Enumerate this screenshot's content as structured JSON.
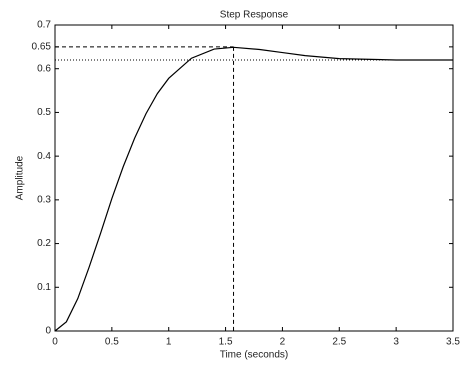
{
  "chart_data": {
    "type": "line",
    "title": "Step Response",
    "x_label": "Time (seconds)",
    "y_label": "Amplitude",
    "x": [
      0,
      0.1,
      0.2,
      0.3,
      0.4,
      0.5,
      0.6,
      0.7,
      0.8,
      0.9,
      1.0,
      1.2,
      1.4,
      1.57,
      1.8,
      2.0,
      2.2,
      2.5,
      3.0,
      3.5
    ],
    "series": [
      {
        "color": "#000000",
        "values": [
          0,
          0.021,
          0.074,
          0.146,
          0.223,
          0.303,
          0.376,
          0.441,
          0.497,
          0.543,
          0.578,
          0.624,
          0.645,
          0.649,
          0.644,
          0.637,
          0.63,
          0.623,
          0.62,
          0.62
        ]
      }
    ],
    "peak": {
      "x": 1.57,
      "y": 0.65
    },
    "steady_state": 0.62,
    "xlim": [
      0,
      3.5
    ],
    "ylim": [
      0,
      0.7
    ],
    "xticks": [
      0,
      0.5,
      1,
      1.5,
      2,
      2.5,
      3,
      3.5
    ],
    "yticks": [
      0,
      0.1,
      0.2,
      0.3,
      0.4,
      0.5,
      0.6,
      0.65,
      0.7
    ],
    "grid": false
  }
}
